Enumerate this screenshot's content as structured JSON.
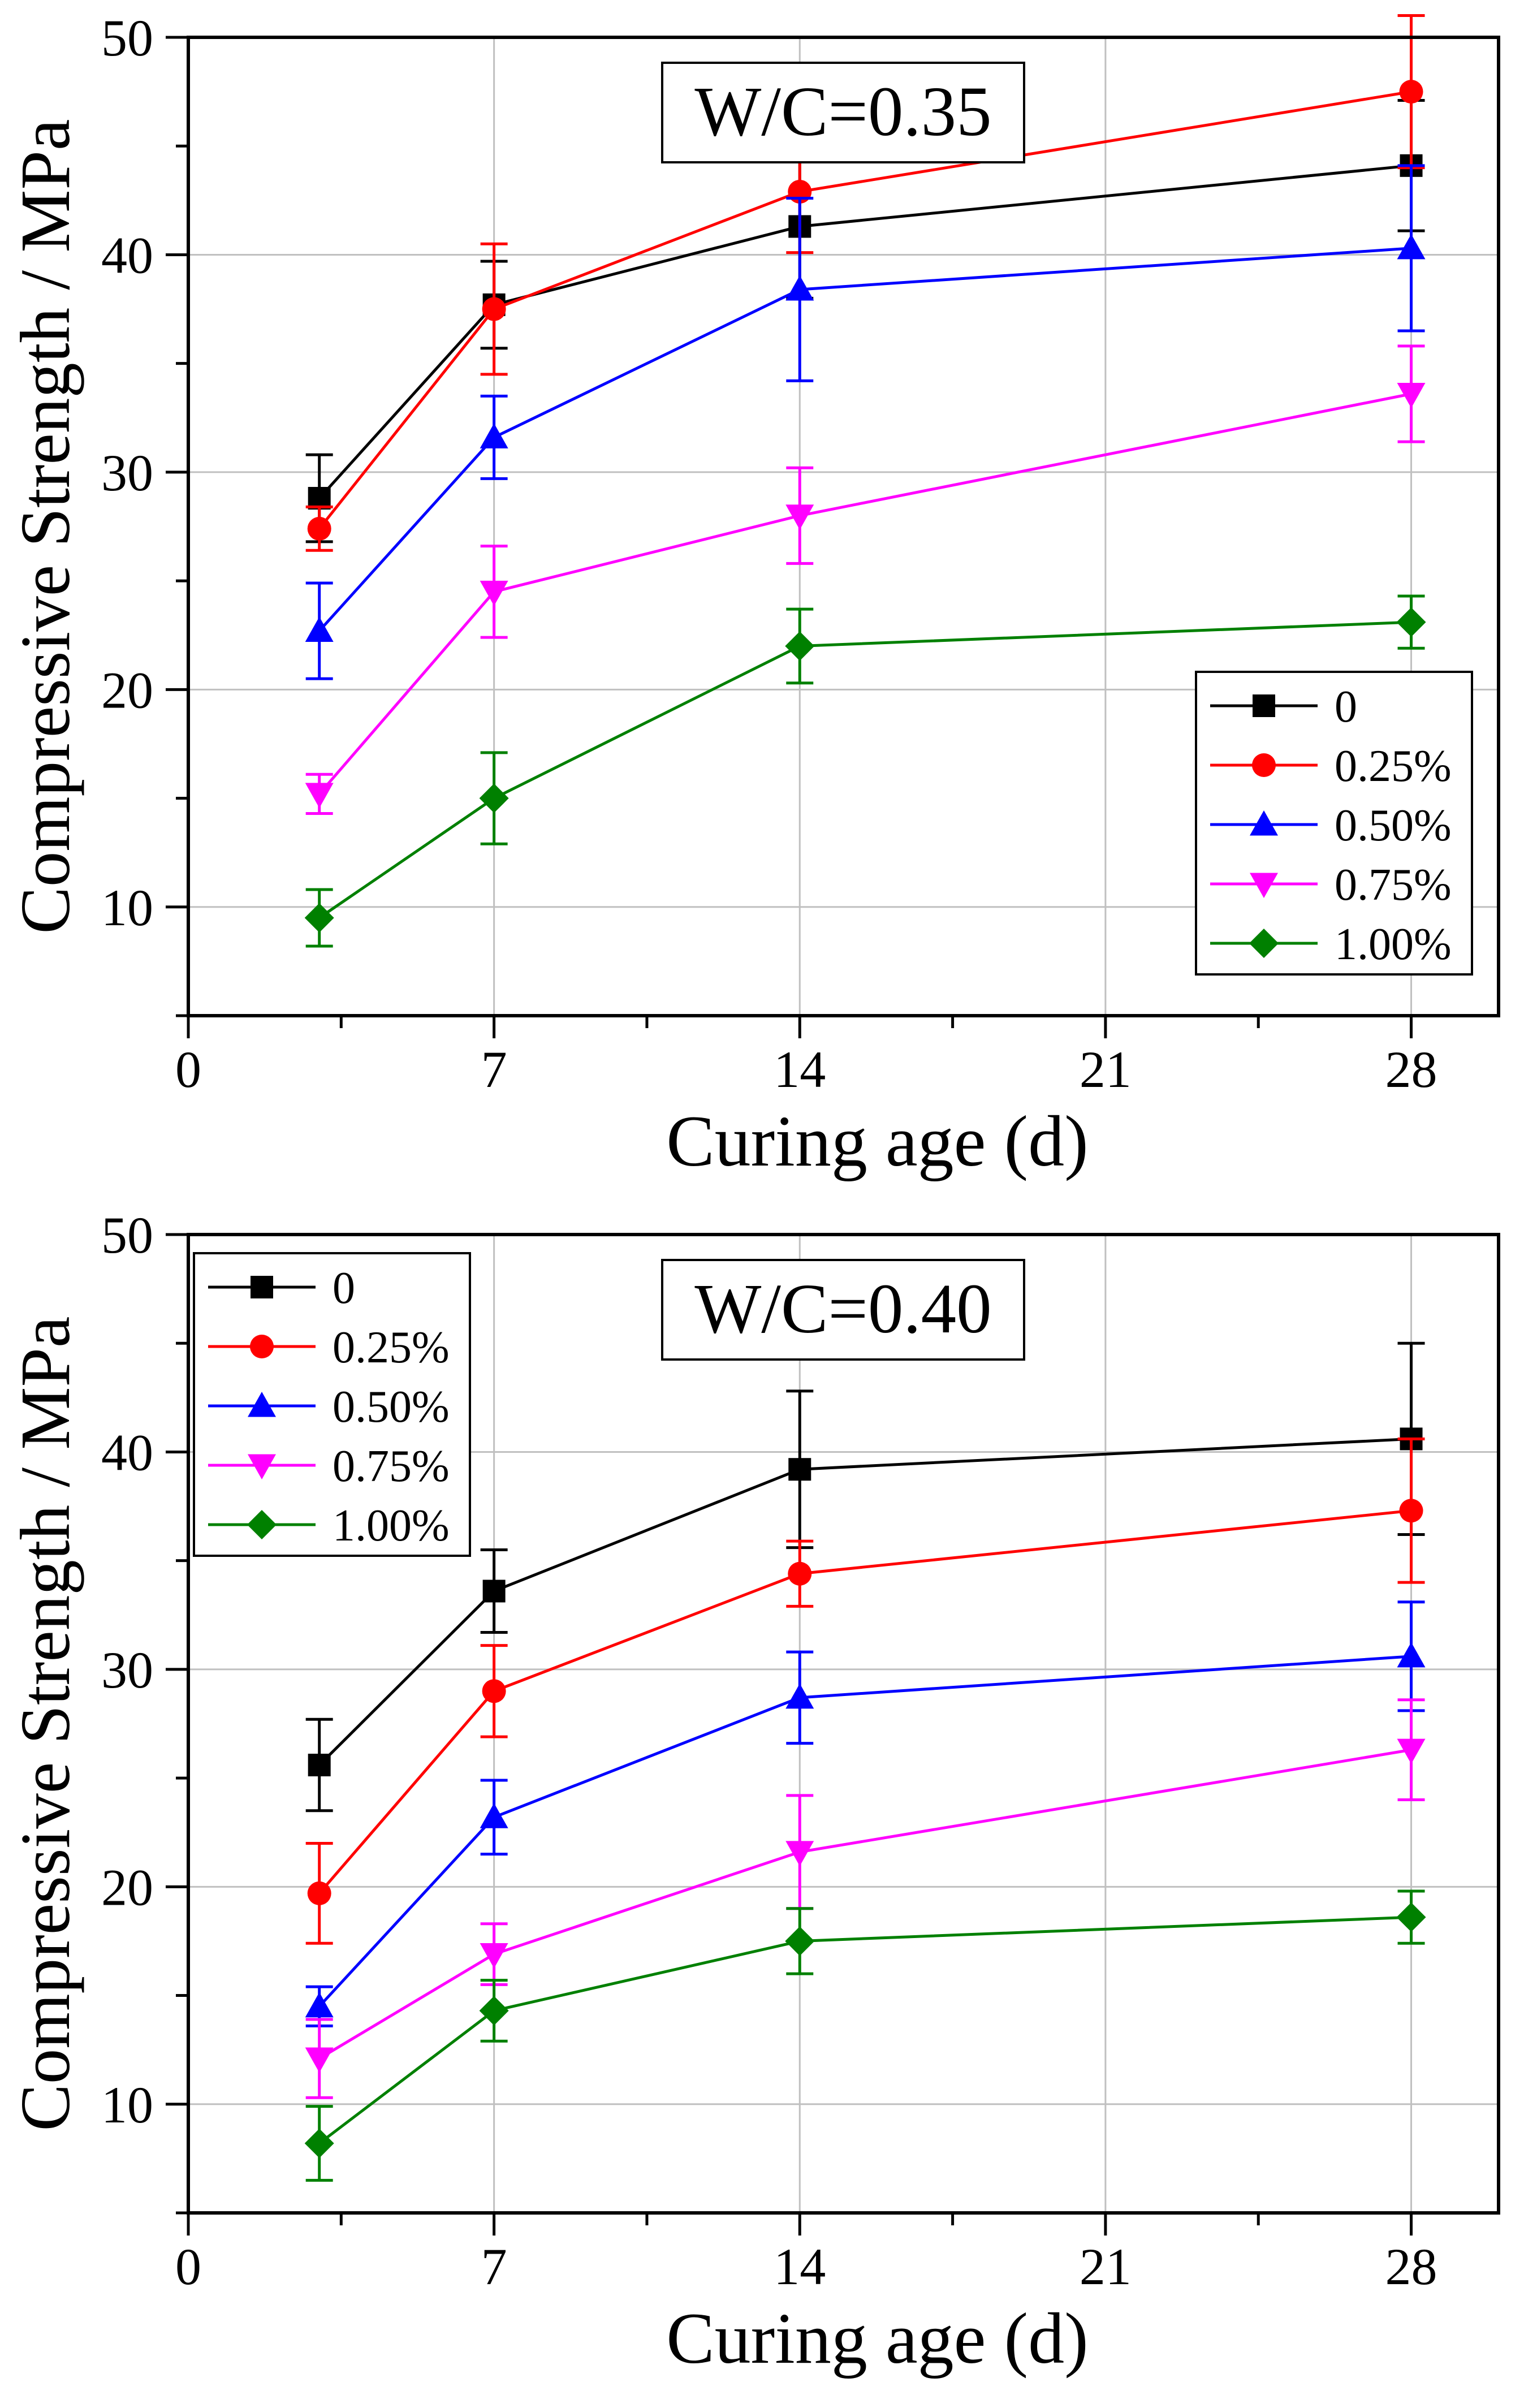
{
  "colors": {
    "black": "#000000",
    "red": "#ff0000",
    "blue": "#0000ff",
    "magenta": "#ff00ff",
    "green": "#008000",
    "grid": "#c0c0c0"
  },
  "chart_data": [
    {
      "type": "line",
      "title": "W/C=0.35",
      "xlabel": "Curing age (d)",
      "ylabel": "Compressive Strength / MPa",
      "xlim": [
        0,
        30
      ],
      "ylim": [
        5,
        50
      ],
      "xticks": [
        0,
        7,
        14,
        21,
        28
      ],
      "yticks": [
        10,
        20,
        30,
        40,
        50
      ],
      "x": [
        3,
        7,
        14,
        28
      ],
      "legend_position": "lower-right",
      "series": [
        {
          "name": "0",
          "marker": "square",
          "color": "#000000",
          "values": [
            28.8,
            37.7,
            41.3,
            44.1
          ],
          "errors": [
            2.0,
            2.0,
            3.3,
            3.0
          ]
        },
        {
          "name": "0.25%",
          "marker": "circle",
          "color": "#ff0000",
          "values": [
            27.4,
            37.5,
            42.9,
            47.5
          ],
          "errors": [
            1.0,
            3.0,
            2.8,
            3.5
          ]
        },
        {
          "name": "0.50%",
          "marker": "triangle-up",
          "color": "#0000ff",
          "values": [
            22.7,
            31.6,
            38.4,
            40.3
          ],
          "errors": [
            2.2,
            1.9,
            4.2,
            3.8
          ]
        },
        {
          "name": "0.75%",
          "marker": "triangle-down",
          "color": "#ff00ff",
          "values": [
            15.2,
            24.5,
            28.0,
            33.6
          ],
          "errors": [
            0.9,
            2.1,
            2.2,
            2.2
          ]
        },
        {
          "name": "1.00%",
          "marker": "diamond",
          "color": "#008000",
          "values": [
            9.5,
            15.0,
            22.0,
            23.1
          ],
          "errors": [
            1.3,
            2.1,
            1.7,
            1.2
          ]
        }
      ]
    },
    {
      "type": "line",
      "title": "W/C=0.40",
      "xlabel": "Curing age (d)",
      "ylabel": "Compressive Strength / MPa",
      "xlim": [
        0,
        30
      ],
      "ylim": [
        5,
        50
      ],
      "xticks": [
        0,
        7,
        14,
        21,
        28
      ],
      "yticks": [
        10,
        20,
        30,
        40,
        50
      ],
      "x": [
        3,
        7,
        14,
        28
      ],
      "legend_position": "top-left",
      "series": [
        {
          "name": "0",
          "marker": "square",
          "color": "#000000",
          "values": [
            25.6,
            33.6,
            39.2,
            40.6
          ],
          "errors": [
            2.1,
            1.9,
            3.6,
            4.4
          ]
        },
        {
          "name": "0.25%",
          "marker": "circle",
          "color": "#ff0000",
          "values": [
            19.7,
            29.0,
            34.4,
            37.3
          ],
          "errors": [
            2.3,
            2.1,
            1.5,
            3.3
          ]
        },
        {
          "name": "0.50%",
          "marker": "triangle-up",
          "color": "#0000ff",
          "values": [
            14.5,
            23.2,
            28.7,
            30.6
          ],
          "errors": [
            0.9,
            1.7,
            2.1,
            2.5
          ]
        },
        {
          "name": "0.75%",
          "marker": "triangle-down",
          "color": "#ff00ff",
          "values": [
            12.1,
            16.9,
            21.6,
            26.3
          ],
          "errors": [
            1.8,
            1.4,
            2.6,
            2.3
          ]
        },
        {
          "name": "1.00%",
          "marker": "diamond",
          "color": "#008000",
          "values": [
            8.2,
            14.3,
            17.5,
            18.6
          ],
          "errors": [
            1.7,
            1.4,
            1.5,
            1.2
          ]
        }
      ]
    }
  ]
}
